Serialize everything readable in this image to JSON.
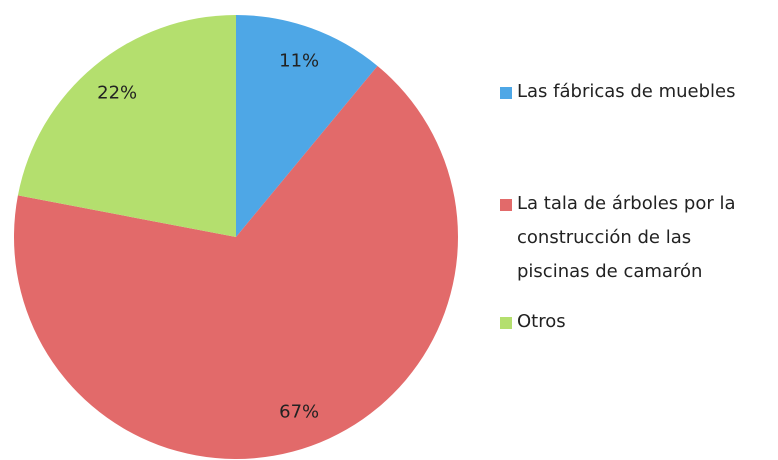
{
  "chart_data": {
    "type": "pie",
    "categories": [
      "Las fábricas de muebles",
      "La tala de árboles por la construcción de las piscinas de camarón",
      "Otros"
    ],
    "values": [
      11,
      67,
      22
    ],
    "value_labels": [
      "11%",
      "67%",
      "22%"
    ],
    "colors": [
      "#4ea7e6",
      "#e26a6a",
      "#b4df6e"
    ]
  }
}
